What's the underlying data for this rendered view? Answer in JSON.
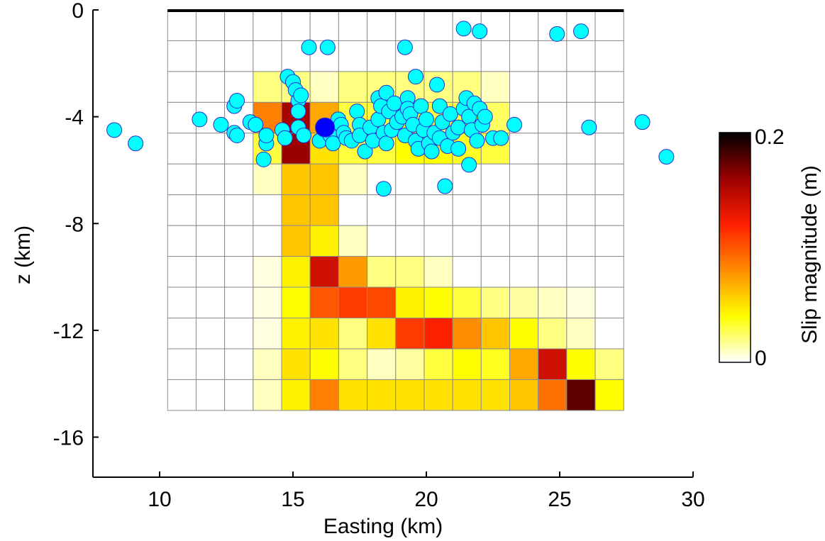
{
  "chart_data": {
    "type": "heatmap",
    "xlabel": "Easting (km)",
    "ylabel": "z (km)",
    "xlim": [
      7.5,
      30
    ],
    "ylim": [
      -17.5,
      0
    ],
    "xticks": [
      10,
      15,
      20,
      25,
      30
    ],
    "yticks": [
      0,
      -4,
      -8,
      -12,
      -16
    ],
    "xtick_labels": [
      "10",
      "15",
      "20",
      "25",
      "30"
    ],
    "ytick_labels": [
      "0",
      "-4",
      "-8",
      "-12",
      "-16"
    ],
    "grid": false,
    "fault_grid": {
      "x_range_km": [
        10.3,
        27.4
      ],
      "z_range_km": [
        -15,
        0
      ],
      "columns": 16,
      "rows": 13
    },
    "fault_trace_depth_km": 0,
    "colorbar": {
      "label": "Slip magnitude (m)",
      "min": 0,
      "max": 0.2,
      "tick_labels": [
        "0",
        "0.2"
      ],
      "colors": [
        "#ffffff",
        "#ffff00",
        "#ff8c00",
        "#ff2000",
        "#9b0000",
        "#000000"
      ]
    },
    "slip_m": [
      [
        0,
        0,
        0,
        0,
        0,
        0,
        0,
        0,
        0,
        0,
        0,
        0,
        0,
        0,
        0,
        0
      ],
      [
        0,
        0,
        0,
        0,
        0,
        0,
        0,
        0,
        0,
        0,
        0,
        0,
        0,
        0,
        0,
        0
      ],
      [
        0,
        0,
        0,
        0.02,
        0.02,
        0.01,
        0.02,
        0.02,
        0.02,
        0.02,
        0.02,
        0.01,
        0,
        0,
        0,
        0
      ],
      [
        0,
        0,
        0,
        0.085,
        0.155,
        0.07,
        0.03,
        0.03,
        0.04,
        0.03,
        0.03,
        0.025,
        0,
        0,
        0,
        0
      ],
      [
        0,
        0,
        0,
        0.03,
        0.16,
        0.05,
        0.03,
        0.03,
        0.04,
        0.04,
        0.035,
        0.03,
        0,
        0,
        0,
        0
      ],
      [
        0,
        0,
        0,
        0.01,
        0.06,
        0.06,
        0.01,
        0,
        0,
        0,
        0,
        0,
        0,
        0,
        0,
        0
      ],
      [
        0,
        0,
        0,
        0,
        0.06,
        0.06,
        0,
        0,
        0,
        0,
        0,
        0,
        0,
        0,
        0,
        0
      ],
      [
        0,
        0,
        0,
        0,
        0.06,
        0.045,
        0.01,
        0,
        0,
        0,
        0,
        0,
        0,
        0,
        0,
        0
      ],
      [
        0,
        0,
        0,
        0.005,
        0.045,
        0.14,
        0.075,
        0.02,
        0.02,
        0.01,
        0,
        0,
        0,
        0,
        0,
        0
      ],
      [
        0,
        0,
        0,
        0.005,
        0.04,
        0.1,
        0.11,
        0.105,
        0.045,
        0.04,
        0.03,
        0.02,
        0.015,
        0.01,
        0.005,
        0
      ],
      [
        0,
        0,
        0,
        0.005,
        0.045,
        0.05,
        0.02,
        0.05,
        0.11,
        0.12,
        0.08,
        0.06,
        0.04,
        0.02,
        0.01,
        0
      ],
      [
        0,
        0,
        0,
        0.01,
        0.05,
        0.04,
        0.02,
        0.01,
        0.015,
        0.03,
        0.04,
        0.035,
        0.07,
        0.14,
        0.04,
        0.02
      ],
      [
        0,
        0,
        0,
        0.01,
        0.045,
        0.085,
        0.05,
        0.05,
        0.05,
        0.05,
        0.05,
        0.05,
        0.06,
        0.09,
        0.175,
        0.04
      ]
    ],
    "series": [
      {
        "type": "scatter",
        "color": "#00ffff",
        "points": [
          [
            8.3,
            -4.5
          ],
          [
            9.1,
            -5.0
          ],
          [
            11.5,
            -4.1
          ],
          [
            12.3,
            -4.3
          ],
          [
            12.8,
            -3.6
          ],
          [
            12.9,
            -3.4
          ],
          [
            12.8,
            -4.6
          ],
          [
            12.9,
            -4.7
          ],
          [
            13.4,
            -4.2
          ],
          [
            13.6,
            -4.3
          ],
          [
            13.9,
            -5.6
          ],
          [
            14.0,
            -5.0
          ],
          [
            14.0,
            -4.7
          ],
          [
            14.6,
            -4.5
          ],
          [
            14.7,
            -4.8
          ],
          [
            14.8,
            -2.5
          ],
          [
            15.0,
            -2.7
          ],
          [
            15.1,
            -3.0
          ],
          [
            15.2,
            -3.4
          ],
          [
            15.3,
            -3.2
          ],
          [
            15.2,
            -3.8
          ],
          [
            15.2,
            -4.4
          ],
          [
            15.4,
            -4.7
          ],
          [
            15.6,
            -1.4
          ],
          [
            16.0,
            -4.9
          ],
          [
            16.3,
            -1.4
          ],
          [
            16.4,
            -4.7
          ],
          [
            16.5,
            -5.0
          ],
          [
            16.7,
            -4.1
          ],
          [
            16.8,
            -4.3
          ],
          [
            16.9,
            -4.6
          ],
          [
            17.0,
            -4.8
          ],
          [
            17.2,
            -4.9
          ],
          [
            17.4,
            -3.8
          ],
          [
            17.5,
            -4.3
          ],
          [
            17.5,
            -4.7
          ],
          [
            17.7,
            -5.3
          ],
          [
            17.9,
            -4.4
          ],
          [
            18.0,
            -4.9
          ],
          [
            18.2,
            -3.3
          ],
          [
            18.2,
            -4.1
          ],
          [
            18.3,
            -3.6
          ],
          [
            18.4,
            -4.6
          ],
          [
            18.5,
            -3.1
          ],
          [
            18.5,
            -5.0
          ],
          [
            18.4,
            -6.7
          ],
          [
            18.6,
            -3.8
          ],
          [
            18.7,
            -4.5
          ],
          [
            18.8,
            -3.5
          ],
          [
            18.9,
            -4.2
          ],
          [
            19.1,
            -4.0
          ],
          [
            19.2,
            -1.4
          ],
          [
            19.2,
            -4.7
          ],
          [
            19.3,
            -3.3
          ],
          [
            19.3,
            -3.7
          ],
          [
            19.4,
            -3.9
          ],
          [
            19.5,
            -4.3
          ],
          [
            19.6,
            -2.5
          ],
          [
            19.6,
            -4.9
          ],
          [
            19.7,
            -5.2
          ],
          [
            19.8,
            -3.6
          ],
          [
            19.9,
            -4.5
          ],
          [
            20.0,
            -4.1
          ],
          [
            20.1,
            -5.0
          ],
          [
            20.2,
            -5.3
          ],
          [
            20.3,
            -4.6
          ],
          [
            20.4,
            -2.8
          ],
          [
            20.5,
            -3.6
          ],
          [
            20.5,
            -4.8
          ],
          [
            20.6,
            -4.2
          ],
          [
            20.7,
            -6.6
          ],
          [
            20.8,
            -5.1
          ],
          [
            20.9,
            -3.9
          ],
          [
            21.0,
            -4.6
          ],
          [
            21.2,
            -4.4
          ],
          [
            21.2,
            -5.2
          ],
          [
            21.4,
            -3.7
          ],
          [
            21.4,
            -0.7
          ],
          [
            21.5,
            -3.3
          ],
          [
            21.6,
            -4.0
          ],
          [
            21.6,
            -5.8
          ],
          [
            21.7,
            -4.5
          ],
          [
            21.8,
            -3.5
          ],
          [
            21.9,
            -4.9
          ],
          [
            22.0,
            -3.7
          ],
          [
            22.0,
            -0.8
          ],
          [
            22.1,
            -4.3
          ],
          [
            22.2,
            -4.0
          ],
          [
            22.5,
            -4.8
          ],
          [
            22.8,
            -4.8
          ],
          [
            23.3,
            -4.3
          ],
          [
            24.9,
            -0.9
          ],
          [
            25.8,
            -0.8
          ],
          [
            26.1,
            -4.4
          ],
          [
            28.1,
            -4.2
          ],
          [
            29.0,
            -5.5
          ]
        ]
      },
      {
        "type": "scatter",
        "name": "",
        "color": "#0000ff",
        "points": [
          [
            16.2,
            -4.4
          ]
        ]
      }
    ]
  }
}
